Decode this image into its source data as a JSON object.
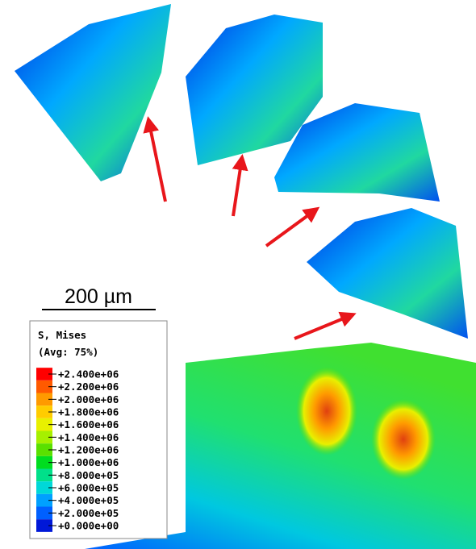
{
  "scale_bar": {
    "label": "200 µm"
  },
  "legend": {
    "title": "S, Mises",
    "subtitle": "(Avg: 75%)",
    "labels": [
      "+2.400e+06",
      "+2.200e+06",
      "+2.000e+06",
      "+1.800e+06",
      "+1.600e+06",
      "+1.400e+06",
      "+1.200e+06",
      "+1.000e+06",
      "+8.000e+05",
      "+6.000e+05",
      "+4.000e+05",
      "+2.000e+05",
      "+0.000e+00"
    ],
    "colors": [
      "#ff0000",
      "#ff5a00",
      "#ff9a00",
      "#ffcc00",
      "#e8f000",
      "#a6f000",
      "#5ae000",
      "#00dd20",
      "#00e08a",
      "#00d8d8",
      "#00a0ff",
      "#0060ff",
      "#0018d8"
    ]
  }
}
